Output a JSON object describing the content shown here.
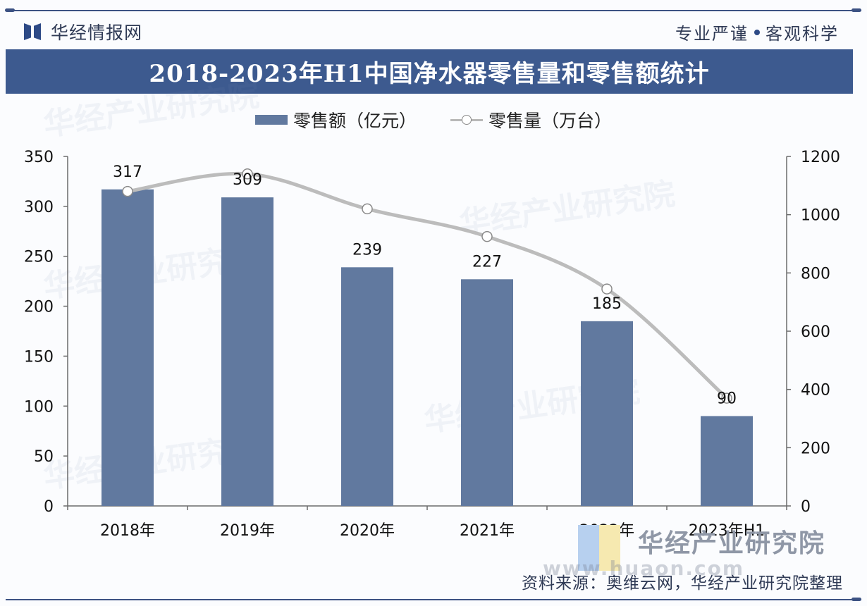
{
  "header": {
    "brand_name": "华经情报网",
    "slogan_left": "专业严谨",
    "slogan_right": "客观科学",
    "title": "2018-2023年H1中国净水器零售量和零售额统计"
  },
  "legend": {
    "bar_label": "零售额（亿元）",
    "line_label": "零售量（万台）"
  },
  "footer": {
    "source": "资料来源：奥维云网，华经产业研究院整理",
    "watermark_name": "华经产业研究院",
    "watermark_url": "www.huaon.com"
  },
  "colors": {
    "bar": "#61799f",
    "line": "#bcbcbc",
    "title_bar": "#3d5a8f",
    "axis": "#6b6b6b"
  },
  "chart_data": {
    "type": "bar",
    "title": "2018-2023年H1中国净水器零售量和零售额统计",
    "categories": [
      "2018年",
      "2019年",
      "2020年",
      "2021年",
      "2022年",
      "2023年H1"
    ],
    "series": [
      {
        "name": "零售额（亿元）",
        "type": "bar",
        "axis": "left",
        "values": [
          317,
          309,
          239,
          227,
          185,
          90
        ],
        "data_labels": [
          "317",
          "309",
          "239",
          "227",
          "185",
          "90"
        ]
      },
      {
        "name": "零售量（万台）",
        "type": "line",
        "smooth": true,
        "axis": "right",
        "values": [
          1080,
          1140,
          1020,
          925,
          745,
          370
        ]
      }
    ],
    "y_left": {
      "range": [
        0,
        350
      ],
      "ticks": [
        0,
        50,
        100,
        150,
        200,
        250,
        300,
        350
      ],
      "tick_labels": [
        "0",
        "50",
        "100",
        "150",
        "200",
        "250",
        "300",
        "350"
      ]
    },
    "y_right": {
      "range": [
        0,
        1200
      ],
      "ticks": [
        0,
        200,
        400,
        600,
        800,
        1000,
        1200
      ],
      "tick_labels": [
        "0",
        "200",
        "400",
        "600",
        "800",
        "1000",
        "1200"
      ]
    },
    "xlabel": "",
    "ylabel": "",
    "grid": false,
    "legend_position": "top-center"
  }
}
